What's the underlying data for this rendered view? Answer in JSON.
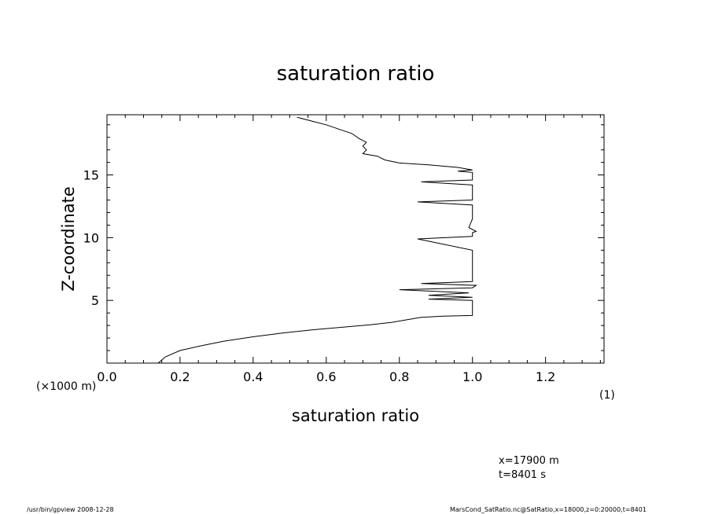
{
  "chart_data": {
    "type": "line",
    "title": "saturation ratio",
    "xlabel": "saturation ratio",
    "ylabel": "Z-coordinate",
    "x_unit_note": "(1)",
    "y_unit_note": "(×1000 m)",
    "xlim": [
      0.0,
      1.36
    ],
    "ylim": [
      0,
      19.8
    ],
    "x_ticks": [
      "0.0",
      "0.2",
      "0.4",
      "0.6",
      "0.8",
      "1.0",
      "1.2"
    ],
    "x_tick_values": [
      0.0,
      0.2,
      0.4,
      0.6,
      0.8,
      1.0,
      1.2
    ],
    "y_ticks": [
      "5",
      "10",
      "15"
    ],
    "y_tick_values": [
      5,
      10,
      15
    ],
    "grid": false,
    "series": [
      {
        "points": [
          [
            0.14,
            0.0
          ],
          [
            0.16,
            0.5
          ],
          [
            0.2,
            1.0
          ],
          [
            0.26,
            1.4
          ],
          [
            0.32,
            1.75
          ],
          [
            0.4,
            2.1
          ],
          [
            0.48,
            2.4
          ],
          [
            0.56,
            2.65
          ],
          [
            0.64,
            2.85
          ],
          [
            0.72,
            3.05
          ],
          [
            0.78,
            3.25
          ],
          [
            0.82,
            3.45
          ],
          [
            0.86,
            3.65
          ],
          [
            0.92,
            3.75
          ],
          [
            1.0,
            3.8
          ],
          [
            1.0,
            4.6
          ],
          [
            1.0,
            5.0
          ],
          [
            0.88,
            5.1
          ],
          [
            1.0,
            5.25
          ],
          [
            0.88,
            5.4
          ],
          [
            0.99,
            5.6
          ],
          [
            0.8,
            5.85
          ],
          [
            1.0,
            6.0
          ],
          [
            1.01,
            6.2
          ],
          [
            0.86,
            6.35
          ],
          [
            1.0,
            6.5
          ],
          [
            1.0,
            9.0
          ],
          [
            0.85,
            9.9
          ],
          [
            1.0,
            10.1
          ],
          [
            1.0,
            10.4
          ],
          [
            1.01,
            10.5
          ],
          [
            0.99,
            10.8
          ],
          [
            1.0,
            11.5
          ],
          [
            1.0,
            12.6
          ],
          [
            0.85,
            12.85
          ],
          [
            1.0,
            13.0
          ],
          [
            1.0,
            14.2
          ],
          [
            0.86,
            14.45
          ],
          [
            1.0,
            14.6
          ],
          [
            1.0,
            15.2
          ],
          [
            0.96,
            15.3
          ],
          [
            1.0,
            15.4
          ],
          [
            0.96,
            15.6
          ],
          [
            0.88,
            15.8
          ],
          [
            0.8,
            15.95
          ],
          [
            0.76,
            16.2
          ],
          [
            0.74,
            16.5
          ],
          [
            0.7,
            16.7
          ],
          [
            0.71,
            17.0
          ],
          [
            0.7,
            17.3
          ],
          [
            0.71,
            17.6
          ],
          [
            0.69,
            17.9
          ],
          [
            0.67,
            18.3
          ],
          [
            0.64,
            18.6
          ],
          [
            0.6,
            19.0
          ],
          [
            0.56,
            19.3
          ],
          [
            0.52,
            19.6
          ]
        ]
      }
    ]
  },
  "annotations": {
    "position": "x=17900  m",
    "time": "t=8401  s",
    "footer_left": "/usr/bin/gpview   2008-12-28",
    "footer_right": "MarsCond_SatRatio.nc@SatRatio,x=18000,z=0:20000,t=8401"
  }
}
